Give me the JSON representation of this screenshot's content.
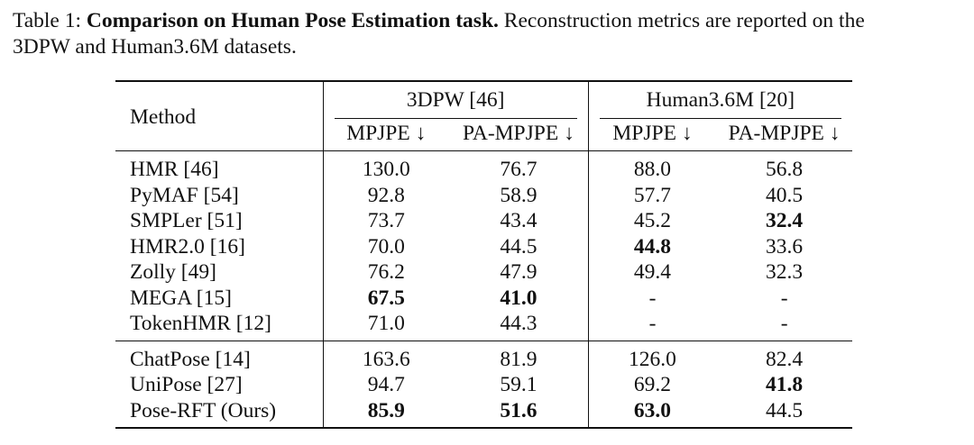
{
  "caption": {
    "prefix": "Table 1: ",
    "title": "Comparison on Human Pose Estimation task.",
    "rest_line1": " Reconstruction metrics are reported on the",
    "line2": "3DPW and Human3.6M datasets."
  },
  "table": {
    "method_header": "Method",
    "groups": [
      "3DPW [46]",
      "Human3.6M [20]"
    ],
    "columns": [
      "MPJPE ↓",
      "PA-MPJPE ↓",
      "MPJPE ↓",
      "PA-MPJPE ↓"
    ],
    "block1": [
      {
        "method": "HMR [46]",
        "v": [
          "130.0",
          "76.7",
          "88.0",
          "56.8"
        ]
      },
      {
        "method": "PyMAF [54]",
        "v": [
          "92.8",
          "58.9",
          "57.7",
          "40.5"
        ]
      },
      {
        "method": "SMPLer [51]",
        "v": [
          "73.7",
          "43.4",
          "45.2",
          "32.4"
        ]
      },
      {
        "method": "HMR2.0 [16]",
        "v": [
          "70.0",
          "44.5",
          "44.8",
          "33.6"
        ]
      },
      {
        "method": "Zolly [49]",
        "v": [
          "76.2",
          "47.9",
          "49.4",
          "32.3"
        ]
      },
      {
        "method": "MEGA [15]",
        "v": [
          "67.5",
          "41.0",
          "-",
          "-"
        ]
      },
      {
        "method": "TokenHMR [12]",
        "v": [
          "71.0",
          "44.3",
          "-",
          "-"
        ]
      }
    ],
    "block2": [
      {
        "method": "ChatPose [14]",
        "v": [
          "163.6",
          "81.9",
          "126.0",
          "82.4"
        ]
      },
      {
        "method": "UniPose [27]",
        "v": [
          "94.7",
          "59.1",
          "69.2",
          "41.8"
        ]
      },
      {
        "method": "Pose-RFT (Ours)",
        "v": [
          "85.9",
          "51.6",
          "63.0",
          "44.5"
        ]
      }
    ]
  }
}
